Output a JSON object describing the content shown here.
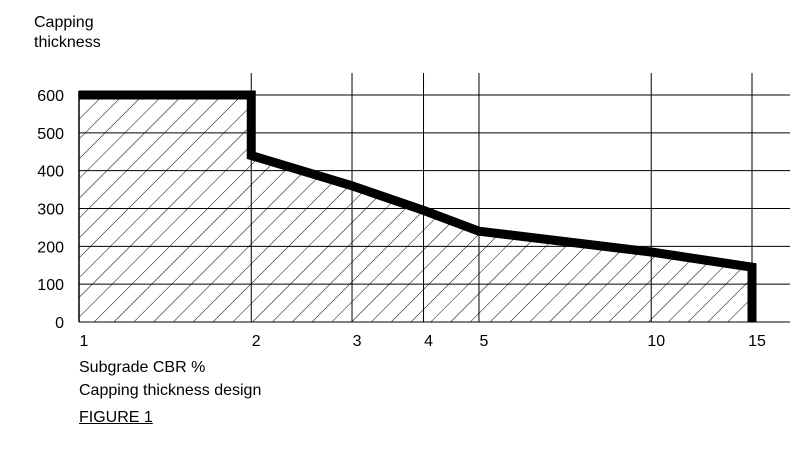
{
  "chart_data": {
    "type": "line",
    "title": "Capping thickness design",
    "figure_label": "FIGURE 1",
    "xlabel": "Subgrade CBR %",
    "ylabel": [
      "Capping",
      "thickness"
    ],
    "x_scale": "log",
    "xlim": [
      1,
      15
    ],
    "ylim": [
      0,
      600
    ],
    "x_ticks": [
      1,
      2,
      3,
      4,
      5,
      10,
      15
    ],
    "y_ticks": [
      0,
      100,
      200,
      300,
      400,
      500,
      600
    ],
    "grid": true,
    "area_fill": "hatched",
    "series": [
      {
        "x": [
          1,
          2,
          2,
          3,
          4,
          5,
          10,
          15,
          15
        ],
        "y": [
          600,
          600,
          440,
          360,
          295,
          240,
          185,
          145,
          0
        ]
      }
    ]
  }
}
